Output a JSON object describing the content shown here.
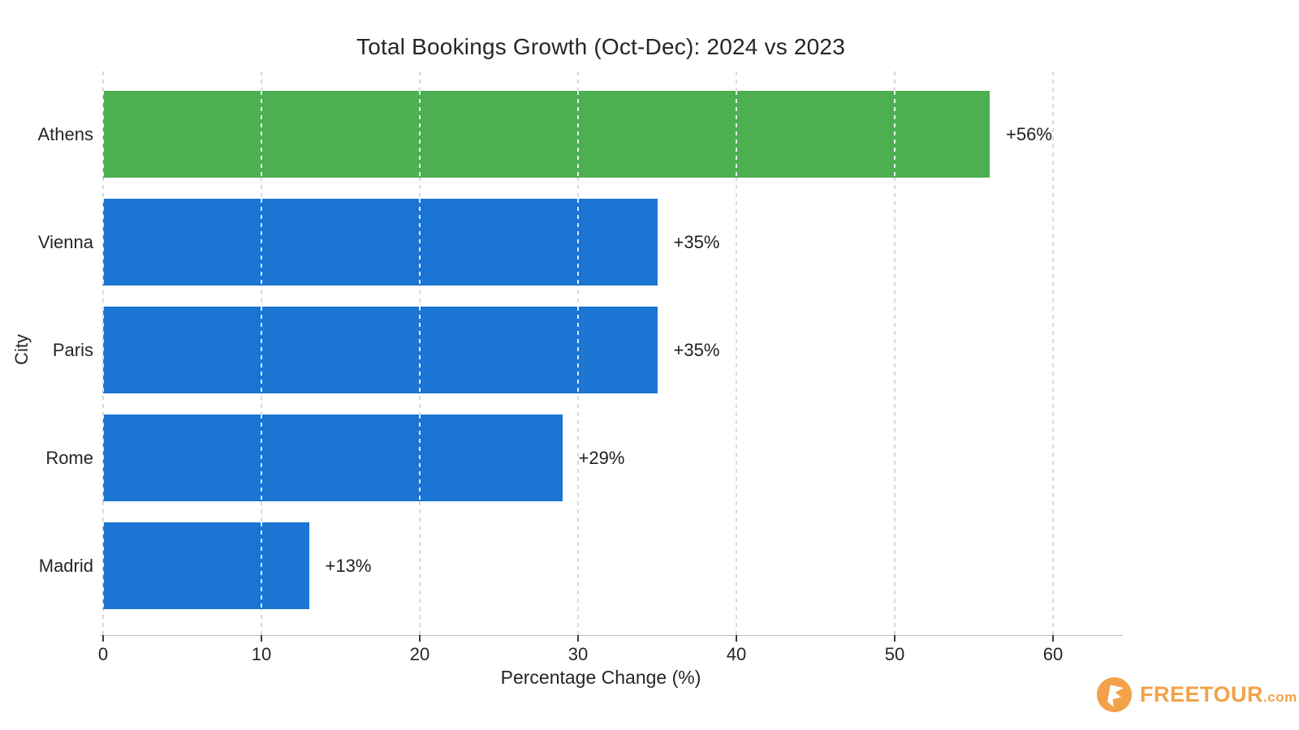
{
  "chart_data": {
    "type": "bar",
    "orientation": "horizontal",
    "title": "Total Bookings Growth (Oct-Dec): 2024 vs 2023",
    "xlabel": "Percentage Change (%)",
    "ylabel": "City",
    "categories": [
      "Athens",
      "Vienna",
      "Paris",
      "Rome",
      "Madrid"
    ],
    "values": [
      56,
      35,
      35,
      29,
      13
    ],
    "value_labels": [
      "+56%",
      "+35%",
      "+35%",
      "+29%",
      "+13%"
    ],
    "bar_colors": [
      "#4caf50",
      "#1b75d2",
      "#1b75d2",
      "#1b75d2",
      "#1b75d2"
    ],
    "xlim": [
      0,
      64.41
    ],
    "xticks": [
      0,
      10,
      20,
      30,
      40,
      50,
      60
    ],
    "grid": "vertical-dashed",
    "legend": "none"
  },
  "colors": {
    "highlight_green": "#4caf50",
    "bar_blue": "#1b75d2",
    "grid_gray": "#d9d9d9",
    "axis_gray": "#bdbdbd",
    "text_dark": "#262626",
    "logo_orange": "#f2a24a"
  },
  "branding": {
    "logo_text": "FREETOUR",
    "logo_suffix": ".com"
  }
}
